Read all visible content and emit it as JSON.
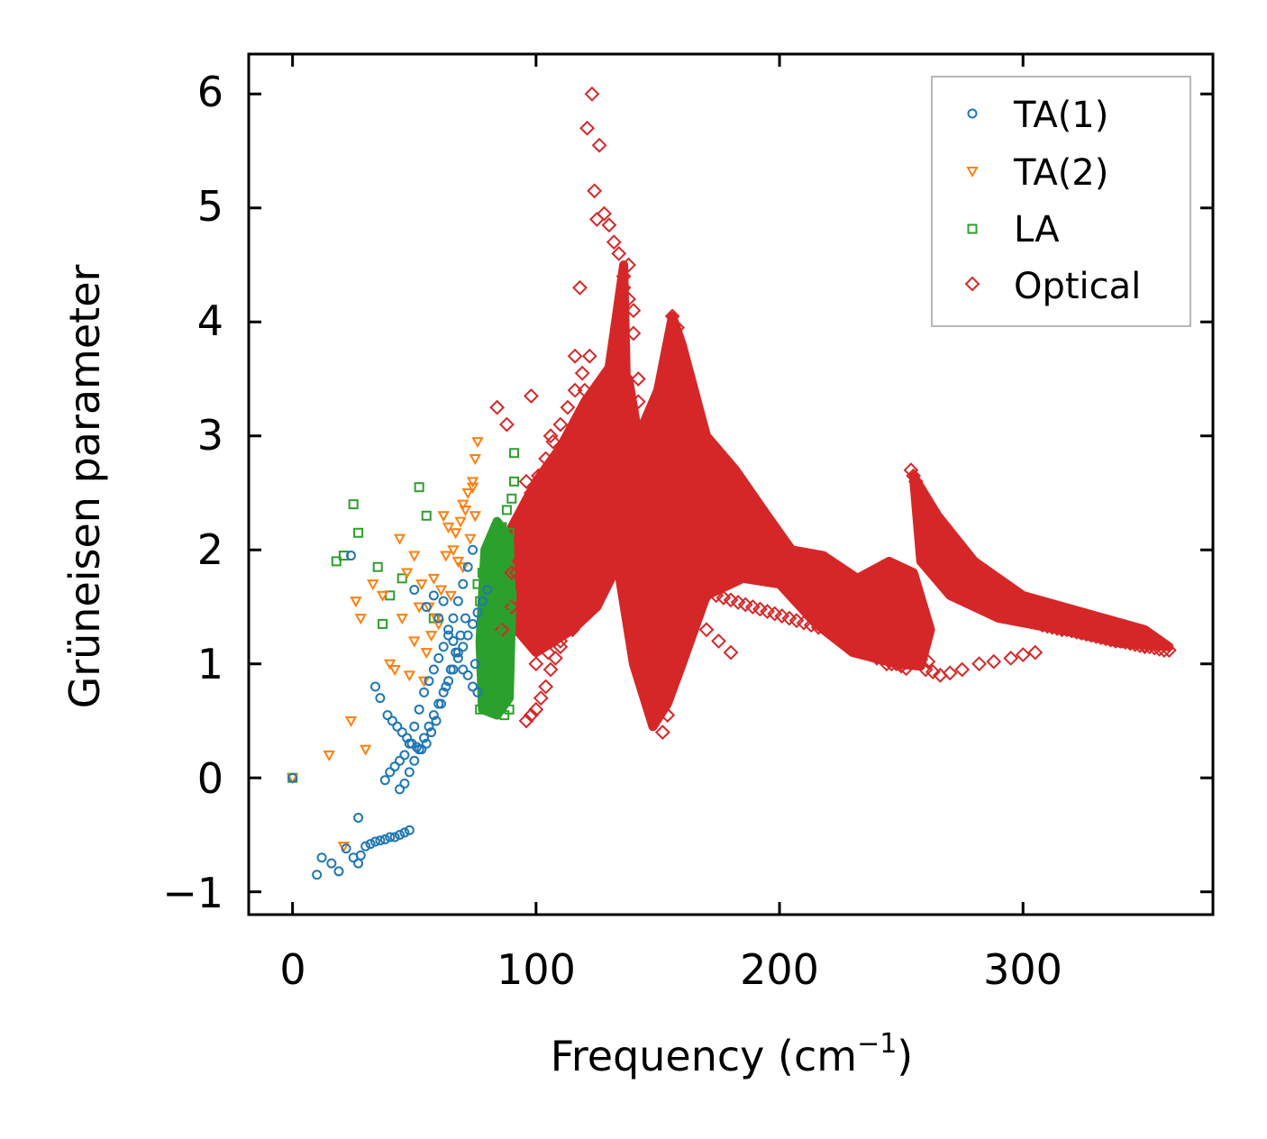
{
  "chart_data": {
    "type": "scatter",
    "title": "",
    "xlabel": "Frequency (cm",
    "xlabel_sup": "−1",
    "xlabel_close": ")",
    "ylabel": "Grüneisen parameter",
    "xlim": [
      -18,
      378
    ],
    "ylim": [
      -1.2,
      6.35
    ],
    "xticks": [
      0,
      100,
      200,
      300
    ],
    "xtick_labels": [
      "0",
      "100",
      "200",
      "300"
    ],
    "yticks": [
      -1,
      0,
      1,
      2,
      3,
      4,
      5,
      6
    ],
    "ytick_labels": [
      "−1",
      "0",
      "1",
      "2",
      "3",
      "4",
      "5",
      "6"
    ],
    "legend_position": "top-right",
    "series": [
      {
        "name": "TA(1)",
        "marker": "circle",
        "color": "#1f77b4",
        "x": [
          0,
          10,
          12,
          16,
          19,
          22,
          25,
          27,
          28,
          30,
          32,
          34,
          36,
          38,
          40,
          42,
          44,
          46,
          48,
          34,
          36,
          39,
          41,
          43,
          45,
          47,
          49,
          51,
          53,
          55,
          57,
          59,
          61,
          63,
          65,
          67,
          69,
          71,
          38,
          40,
          42,
          44,
          46,
          48,
          50,
          52,
          54,
          56,
          58,
          60,
          62,
          64,
          66,
          68,
          70,
          72,
          74,
          27,
          24,
          50,
          55,
          58,
          60,
          62,
          64,
          66,
          68,
          70,
          72,
          74,
          76,
          44,
          46,
          48,
          50,
          52,
          54,
          56,
          58,
          60,
          62,
          64,
          66,
          68,
          70,
          72,
          74,
          76,
          78,
          80,
          75
        ],
        "y": [
          0.0,
          -0.85,
          -0.7,
          -0.75,
          -0.82,
          -0.62,
          -0.7,
          -0.75,
          -0.68,
          -0.6,
          -0.58,
          -0.56,
          -0.55,
          -0.54,
          -0.52,
          -0.52,
          -0.5,
          -0.48,
          -0.46,
          0.8,
          0.7,
          0.55,
          0.5,
          0.45,
          0.4,
          0.35,
          0.3,
          0.27,
          0.25,
          0.3,
          0.4,
          0.5,
          0.65,
          0.8,
          0.95,
          1.1,
          1.25,
          1.4,
          -0.02,
          0.05,
          0.1,
          0.15,
          0.2,
          0.3,
          0.45,
          0.6,
          0.75,
          0.85,
          0.95,
          1.05,
          1.15,
          1.25,
          1.4,
          1.55,
          1.7,
          1.85,
          2.0,
          -0.35,
          1.95,
          1.65,
          1.5,
          1.6,
          1.4,
          1.55,
          1.3,
          1.2,
          1.1,
          0.95,
          0.9,
          0.8,
          0.75,
          -0.1,
          -0.05,
          0.05,
          0.15,
          0.25,
          0.35,
          0.45,
          0.55,
          0.65,
          0.75,
          0.85,
          0.95,
          1.05,
          1.15,
          1.25,
          1.35,
          1.45,
          1.55,
          1.65,
          1.0
        ]
      },
      {
        "name": "TA(2)",
        "marker": "triangle-down",
        "color": "#ff7f0e",
        "x": [
          0,
          15,
          21,
          24,
          26,
          28,
          30,
          33,
          37,
          40,
          44,
          47,
          50,
          53,
          56,
          59,
          62,
          64,
          66,
          68,
          70,
          72,
          74,
          75,
          76,
          45,
          50,
          55,
          60,
          65,
          70,
          73,
          75,
          48,
          52,
          58,
          63,
          67,
          71,
          74,
          42,
          54,
          57,
          61,
          69
        ],
        "y": [
          0.0,
          0.2,
          -0.6,
          0.5,
          1.55,
          1.4,
          0.25,
          1.7,
          1.6,
          1.0,
          2.1,
          1.8,
          1.95,
          1.7,
          1.5,
          1.4,
          2.3,
          2.2,
          2.0,
          1.9,
          2.4,
          2.5,
          2.6,
          2.8,
          2.95,
          1.4,
          1.2,
          1.1,
          1.35,
          1.6,
          1.85,
          2.1,
          2.3,
          0.9,
          1.5,
          1.75,
          1.95,
          2.15,
          2.35,
          2.55,
          0.95,
          0.85,
          1.25,
          1.65,
          2.25
        ]
      },
      {
        "name": "LA",
        "marker": "square",
        "color": "#2ca02c",
        "x": [
          0,
          18,
          21,
          25,
          27,
          35,
          37,
          40,
          45,
          52,
          55,
          58,
          77,
          79,
          81,
          83,
          85,
          87,
          89,
          91,
          78,
          80,
          82,
          84,
          86,
          88,
          90,
          76,
          78,
          80,
          82,
          84,
          86,
          88,
          90,
          77,
          79,
          81,
          83,
          85,
          87,
          89,
          91,
          80,
          82,
          84,
          86,
          88
        ],
        "y": [
          0.0,
          1.9,
          1.95,
          2.4,
          2.15,
          1.85,
          1.35,
          1.6,
          1.75,
          2.55,
          2.3,
          1.4,
          0.6,
          0.65,
          0.7,
          0.75,
          0.8,
          0.55,
          0.6,
          2.85,
          1.0,
          1.1,
          1.2,
          1.3,
          1.4,
          1.5,
          1.6,
          1.7,
          1.8,
          1.9,
          2.0,
          2.1,
          2.2,
          2.35,
          2.45,
          1.55,
          1.65,
          1.75,
          1.85,
          1.95,
          2.05,
          2.15,
          2.6,
          0.9,
          1.05,
          1.25,
          1.45,
          1.65
        ]
      },
      {
        "name": "Optical",
        "marker": "diamond",
        "color": "#d62728",
        "x": [
          84,
          86,
          88,
          90,
          92,
          94,
          96,
          98,
          100,
          102,
          104,
          106,
          108,
          110,
          112,
          114,
          116,
          118,
          120,
          122,
          124,
          126,
          128,
          130,
          132,
          134,
          136,
          138,
          140,
          142,
          144,
          146,
          148,
          150,
          152,
          154,
          156,
          158,
          160,
          162,
          164,
          166,
          168,
          170,
          172,
          174,
          176,
          178,
          180,
          182,
          184,
          186,
          188,
          190,
          192,
          194,
          196,
          198,
          200,
          202,
          204,
          206,
          208,
          210,
          212,
          214,
          216,
          218,
          220,
          222,
          224,
          226,
          228,
          230,
          232,
          234,
          236,
          238,
          240,
          242,
          244,
          246,
          248,
          250,
          252,
          254,
          256,
          258,
          260,
          262,
          264,
          266,
          268,
          270,
          272,
          274,
          276,
          278,
          280,
          282,
          284,
          286,
          288,
          290,
          292,
          294,
          296,
          298,
          300,
          302,
          304,
          306,
          308,
          310,
          312,
          314,
          316,
          318,
          320,
          322,
          324,
          326,
          328,
          330,
          332,
          334,
          336,
          338,
          340,
          342,
          344,
          346,
          348,
          350,
          352,
          354,
          356,
          358,
          360,
          123,
          121,
          126,
          124,
          125,
          128,
          130,
          132,
          134,
          136,
          138,
          140,
          142,
          144,
          146,
          148,
          150,
          156,
          158,
          160,
          162,
          165,
          168,
          172,
          175,
          178,
          182,
          186,
          190,
          195,
          200,
          205,
          210,
          215,
          220,
          225,
          230,
          235,
          240,
          245,
          250,
          255,
          258,
          262,
          266,
          270,
          275,
          280,
          285,
          290,
          295,
          300,
          305,
          310,
          315,
          320,
          330,
          340,
          350,
          96,
          98,
          100,
          102,
          104,
          106,
          108,
          110,
          112,
          114,
          116,
          118,
          120,
          100,
          105,
          110,
          115,
          120,
          125,
          130,
          135,
          140,
          145,
          150,
          155,
          160,
          165,
          170,
          175,
          180,
          260,
          263,
          266,
          270,
          275,
          282,
          288,
          295,
          300,
          305,
          92,
          95,
          98,
          101,
          104,
          107,
          110,
          113,
          116,
          119,
          122,
          90,
          93,
          96,
          99,
          102,
          105,
          108,
          111,
          114,
          117,
          120,
          123,
          126,
          129,
          132,
          135,
          138,
          141,
          144,
          147,
          150,
          153,
          156,
          159,
          162,
          165,
          168,
          171,
          174,
          177,
          180,
          183,
          186,
          189,
          192,
          195,
          198,
          201,
          204,
          207,
          210,
          213,
          216,
          219,
          222,
          225,
          228,
          231,
          234,
          237,
          240,
          243,
          246,
          249,
          252,
          255,
          258,
          261
        ],
        "y": [
          3.25,
          1.3,
          3.1,
          1.5,
          1.8,
          2.1,
          2.6,
          3.35,
          1.6,
          2.2,
          2.7,
          3.0,
          2.4,
          2.0,
          2.5,
          2.9,
          3.7,
          4.3,
          3.4,
          2.2,
          2.4,
          2.6,
          2.8,
          3.1,
          3.3,
          3.8,
          4.3,
          4.5,
          4.1,
          3.3,
          2.4,
          1.7,
          0.9,
          0.6,
          0.4,
          0.55,
          4.05,
          3.95,
          3.7,
          3.5,
          3.3,
          3.2,
          3.0,
          2.85,
          2.7,
          2.6,
          2.5,
          2.45,
          2.35,
          2.3,
          2.2,
          2.15,
          2.1,
          2.05,
          2.0,
          1.95,
          1.9,
          1.85,
          1.8,
          1.75,
          1.7,
          1.65,
          1.6,
          1.55,
          1.5,
          1.45,
          1.45,
          1.4,
          1.35,
          1.3,
          1.3,
          1.25,
          1.2,
          1.2,
          1.15,
          1.15,
          1.1,
          1.1,
          1.05,
          1.05,
          1.0,
          1.0,
          1.0,
          0.98,
          0.96,
          2.7,
          2.6,
          2.5,
          2.4,
          2.3,
          2.2,
          2.1,
          2.05,
          2.0,
          1.9,
          1.85,
          1.8,
          1.75,
          1.7,
          1.65,
          1.6,
          1.55,
          1.5,
          1.5,
          1.48,
          1.46,
          1.44,
          1.42,
          1.4,
          1.4,
          1.38,
          1.36,
          1.34,
          1.33,
          1.32,
          1.31,
          1.3,
          1.3,
          1.29,
          1.28,
          1.27,
          1.26,
          1.25,
          1.24,
          1.23,
          1.22,
          1.21,
          1.2,
          1.2,
          1.19,
          1.18,
          1.17,
          1.16,
          1.15,
          1.15,
          1.14,
          1.13,
          1.12,
          1.12,
          6.0,
          5.7,
          5.55,
          5.15,
          4.9,
          4.95,
          4.85,
          4.7,
          4.6,
          4.4,
          4.2,
          3.9,
          3.5,
          3.0,
          2.5,
          1.9,
          1.4,
          3.9,
          3.6,
          3.4,
          3.25,
          3.1,
          2.9,
          2.75,
          2.6,
          2.45,
          2.3,
          2.2,
          2.05,
          1.95,
          1.85,
          1.75,
          1.65,
          1.55,
          1.45,
          1.35,
          1.28,
          1.22,
          1.15,
          1.1,
          1.05,
          2.65,
          2.5,
          2.35,
          2.2,
          2.05,
          1.95,
          1.85,
          1.75,
          1.68,
          1.62,
          1.56,
          1.5,
          1.45,
          1.4,
          1.35,
          1.28,
          1.22,
          1.16,
          0.5,
          0.55,
          0.6,
          0.7,
          0.8,
          0.95,
          1.05,
          1.15,
          1.3,
          1.45,
          1.6,
          1.8,
          2.0,
          1.0,
          1.1,
          1.2,
          1.3,
          1.5,
          1.7,
          1.9,
          2.1,
          2.3,
          2.2,
          2.0,
          1.8,
          1.6,
          1.4,
          1.3,
          1.2,
          1.1,
          0.95,
          0.93,
          0.9,
          0.92,
          0.95,
          1.0,
          1.02,
          1.05,
          1.08,
          1.1,
          2.2,
          2.35,
          2.5,
          2.65,
          2.8,
          2.95,
          3.1,
          3.25,
          3.4,
          3.55,
          3.7,
          1.8,
          1.9,
          2.0,
          2.1,
          2.2,
          2.3,
          2.4,
          2.5,
          2.45,
          2.4,
          2.35,
          2.3,
          2.25,
          2.2,
          2.15,
          2.1,
          2.05,
          2.0,
          1.95,
          1.9,
          1.85,
          1.8,
          1.75,
          1.7,
          1.68,
          1.66,
          1.64,
          1.62,
          1.6,
          1.58,
          1.56,
          1.54,
          1.52,
          1.5,
          1.48,
          1.46,
          1.44,
          1.42,
          1.4,
          1.38,
          1.36,
          1.34,
          1.32,
          1.3,
          1.28,
          1.26,
          1.24,
          1.22,
          1.2,
          1.18,
          1.16,
          1.14,
          1.12,
          1.1,
          1.08,
          1.06,
          1.04,
          1.02
        ]
      }
    ],
    "dense_regions": [
      {
        "series": "Optical",
        "polygon": [
          [
            88,
            1.4
          ],
          [
            100,
            1.1
          ],
          [
            115,
            1.3
          ],
          [
            125,
            1.5
          ],
          [
            132,
            1.8
          ],
          [
            138,
            2.6
          ],
          [
            136,
            4.5
          ],
          [
            130,
            3.6
          ],
          [
            120,
            3.3
          ],
          [
            110,
            2.9
          ],
          [
            100,
            2.6
          ],
          [
            90,
            2.2
          ]
        ]
      },
      {
        "series": "Optical",
        "polygon": [
          [
            134,
            1.8
          ],
          [
            140,
            1.0
          ],
          [
            148,
            0.45
          ],
          [
            154,
            0.65
          ],
          [
            160,
            1.0
          ],
          [
            170,
            1.6
          ],
          [
            185,
            1.75
          ],
          [
            200,
            1.7
          ],
          [
            215,
            1.35
          ],
          [
            230,
            1.1
          ],
          [
            248,
            1.0
          ],
          [
            258,
            0.98
          ],
          [
            262,
            1.3
          ],
          [
            255,
            1.8
          ],
          [
            245,
            1.9
          ],
          [
            232,
            1.75
          ],
          [
            218,
            1.95
          ],
          [
            205,
            2.0
          ],
          [
            195,
            2.3
          ],
          [
            182,
            2.7
          ],
          [
            170,
            3.0
          ],
          [
            160,
            3.8
          ],
          [
            156,
            4.05
          ],
          [
            150,
            3.4
          ],
          [
            142,
            3.0
          ],
          [
            138,
            3.5
          ],
          [
            136,
            2.6
          ]
        ]
      },
      {
        "series": "Optical",
        "polygon": [
          [
            255,
            2.65
          ],
          [
            265,
            2.3
          ],
          [
            280,
            1.9
          ],
          [
            300,
            1.6
          ],
          [
            325,
            1.45
          ],
          [
            350,
            1.3
          ],
          [
            360,
            1.15
          ],
          [
            340,
            1.18
          ],
          [
            315,
            1.3
          ],
          [
            290,
            1.4
          ],
          [
            270,
            1.6
          ],
          [
            258,
            1.9
          ]
        ]
      },
      {
        "series": "LA",
        "polygon": [
          [
            78,
            0.6
          ],
          [
            84,
            0.55
          ],
          [
            89,
            0.7
          ],
          [
            90,
            1.5
          ],
          [
            89,
            2.1
          ],
          [
            84,
            2.25
          ],
          [
            79,
            2.0
          ],
          [
            77,
            1.2
          ]
        ]
      }
    ]
  },
  "colors": {
    "ta1": "#1f77b4",
    "ta2": "#ff7f0e",
    "la": "#2ca02c",
    "optical": "#d62728"
  }
}
